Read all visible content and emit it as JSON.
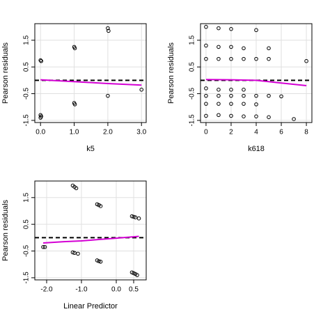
{
  "chart_data": [
    {
      "type": "scatter",
      "xlabel": "k5",
      "ylabel": "Pearson residuals",
      "xlim": [
        -0.17,
        3.14
      ],
      "ylim": [
        -1.58,
        2.12
      ],
      "xticks": [
        {
          "value": 0,
          "label": "0.0"
        },
        {
          "value": 1,
          "label": "1.0"
        },
        {
          "value": 2,
          "label": "2.0"
        },
        {
          "value": 3,
          "label": "3.0"
        }
      ],
      "yticks": [
        -1.5,
        -0.5,
        0.5,
        1.5
      ],
      "grid": true,
      "reference_line": 0,
      "point_color": "#000000",
      "points": {
        "x": [
          0,
          0.02,
          0,
          0.02,
          0,
          1,
          1.02,
          1,
          1.02,
          2,
          2.02,
          2,
          3
        ],
        "y": [
          0.75,
          0.72,
          -1.3,
          -1.35,
          -1.4,
          1.25,
          1.2,
          -0.85,
          -0.9,
          1.95,
          1.85,
          -0.58,
          -0.35
        ]
      },
      "fit": {
        "color": "#d400d4",
        "x": [
          0,
          1,
          2,
          3
        ],
        "y": [
          0.02,
          -0.05,
          -0.12,
          -0.18
        ]
      }
    },
    {
      "type": "scatter",
      "xlabel": "k618",
      "ylabel": "Pearson residuals",
      "xlim": [
        -0.44,
        8.44
      ],
      "ylim": [
        -1.58,
        2.12
      ],
      "xticks": [
        0,
        2,
        4,
        6,
        8
      ],
      "yticks": [
        -1.5,
        -0.5,
        0.5,
        1.5
      ],
      "grid": true,
      "reference_line": 0,
      "point_color": "#000000",
      "points": {
        "x": [
          0,
          0,
          0,
          0,
          0,
          0,
          0,
          1,
          1,
          1,
          1,
          1,
          1,
          1,
          2,
          2,
          2,
          2,
          2,
          2,
          2,
          3,
          3,
          3,
          3,
          3,
          3,
          4,
          4,
          4,
          4,
          4,
          5,
          5,
          5,
          5,
          6,
          7,
          8
        ],
        "y": [
          2.0,
          1.3,
          0.8,
          -0.3,
          -0.58,
          -0.88,
          -1.33,
          1.95,
          1.25,
          0.8,
          -0.35,
          -0.58,
          -0.88,
          -1.3,
          1.92,
          1.25,
          0.8,
          -0.35,
          -0.58,
          -0.88,
          -1.33,
          1.2,
          0.8,
          -0.35,
          -0.58,
          -0.88,
          -1.35,
          1.88,
          0.8,
          -0.58,
          -0.9,
          -1.35,
          1.2,
          0.8,
          -0.58,
          -1.38,
          -0.6,
          -1.45,
          0.72
        ]
      },
      "fit": {
        "color": "#d400d4",
        "x": [
          0,
          2,
          4,
          6,
          8
        ],
        "y": [
          0.03,
          0.02,
          0.0,
          -0.1,
          -0.2
        ]
      }
    },
    {
      "type": "scatter",
      "xlabel": "Linear Predictor",
      "ylabel": "Pearson residuals",
      "xlim": [
        -2.34,
        0.86
      ],
      "ylim": [
        -1.58,
        2.12
      ],
      "xticks": [
        {
          "value": -2,
          "label": "-2.0"
        },
        {
          "value": -1,
          "label": "-1.0"
        },
        {
          "value": 0,
          "label": "0.0"
        },
        0.5
      ],
      "yticks": [
        -1.5,
        -0.5,
        0.5,
        1.5
      ],
      "grid": true,
      "reference_line": 0,
      "point_color": "#000000",
      "points": {
        "x": [
          -2.1,
          -2.05,
          -1.25,
          -1.2,
          -1.15,
          -1.25,
          -1.2,
          -1.1,
          -0.55,
          -0.5,
          -0.45,
          -0.55,
          -0.5,
          -0.45,
          0.45,
          0.5,
          0.55,
          0.65,
          0.45,
          0.5,
          0.55,
          0.6
        ],
        "y": [
          -0.35,
          -0.35,
          1.95,
          1.9,
          1.85,
          -0.55,
          -0.57,
          -0.6,
          1.25,
          1.22,
          1.18,
          -0.85,
          -0.88,
          -0.9,
          0.8,
          0.78,
          0.76,
          0.72,
          -1.3,
          -1.33,
          -1.36,
          -1.4
        ]
      },
      "fit": {
        "color": "#d400d4",
        "x": [
          -2.1,
          -1.5,
          -1.0,
          -0.5,
          0.0,
          0.65
        ],
        "y": [
          -0.2,
          -0.15,
          -0.12,
          -0.07,
          -0.02,
          0.05
        ]
      }
    }
  ]
}
